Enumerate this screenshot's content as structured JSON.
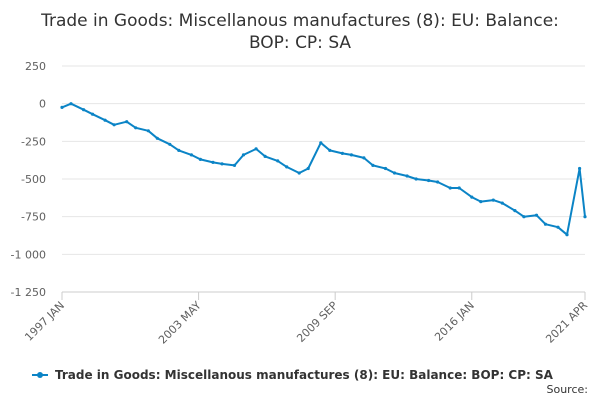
{
  "chart_data": {
    "type": "line",
    "title_lines": [
      "Trade in Goods: Miscellanous manufactures (8): EU: Balance:",
      "BOP: CP: SA"
    ],
    "xlabel": "",
    "ylabel": "",
    "ylim": [
      -1250,
      250
    ],
    "yticks": [
      {
        "value": 250,
        "label": "250"
      },
      {
        "value": 0,
        "label": "0"
      },
      {
        "value": -250,
        "label": "-250"
      },
      {
        "value": -500,
        "label": "-500"
      },
      {
        "value": -750,
        "label": "-750"
      },
      {
        "value": -1000,
        "label": "-1 000"
      },
      {
        "value": -1250,
        "label": "-1 250"
      }
    ],
    "xrange": [
      "1997-01",
      "2021-04"
    ],
    "xticks": [
      {
        "value": "1997-01",
        "label": "1997 JAN"
      },
      {
        "value": "2003-05",
        "label": "2003 MAY"
      },
      {
        "value": "2009-09",
        "label": "2009 SEP"
      },
      {
        "value": "2016-01",
        "label": "2016 JAN"
      },
      {
        "value": "2021-04",
        "label": "2021 APR"
      }
    ],
    "grid": {
      "horizontal": true,
      "vertical": false
    },
    "legend": "bottom-center",
    "colors": {
      "series": "#0b84c6",
      "grid": "#e6e6e6",
      "axis": "#cccccc",
      "tick_label": "#606060",
      "text": "#333333"
    },
    "series": [
      {
        "name": "Trade in Goods: Miscellanous manufactures (8): EU: Balance: BOP: CP: SA",
        "x": [
          "1997-01",
          "1997-06",
          "1998-01",
          "1998-06",
          "1999-01",
          "1999-06",
          "2000-01",
          "2000-06",
          "2001-01",
          "2001-06",
          "2002-01",
          "2002-06",
          "2003-01",
          "2003-06",
          "2004-01",
          "2004-06",
          "2005-01",
          "2005-06",
          "2006-01",
          "2006-06",
          "2007-01",
          "2007-06",
          "2008-01",
          "2008-06",
          "2009-01",
          "2009-06",
          "2010-01",
          "2010-06",
          "2011-01",
          "2011-06",
          "2012-01",
          "2012-06",
          "2013-01",
          "2013-06",
          "2014-01",
          "2014-06",
          "2015-01",
          "2015-06",
          "2016-01",
          "2016-06",
          "2017-01",
          "2017-06",
          "2018-01",
          "2018-06",
          "2019-01",
          "2019-06",
          "2020-01",
          "2020-06",
          "2021-01",
          "2021-04"
        ],
        "values": [
          -25,
          0,
          -40,
          -70,
          -110,
          -140,
          -120,
          -160,
          -180,
          -230,
          -270,
          -310,
          -340,
          -370,
          -390,
          -400,
          -410,
          -340,
          -300,
          -350,
          -380,
          -420,
          -460,
          -430,
          -260,
          -310,
          -330,
          -340,
          -360,
          -410,
          -430,
          -460,
          -480,
          -500,
          -510,
          -520,
          -560,
          -560,
          -620,
          -650,
          -640,
          -660,
          -710,
          -750,
          -740,
          -800,
          -820,
          -870,
          -430,
          -750
        ]
      }
    ],
    "source_label": "Source:"
  }
}
